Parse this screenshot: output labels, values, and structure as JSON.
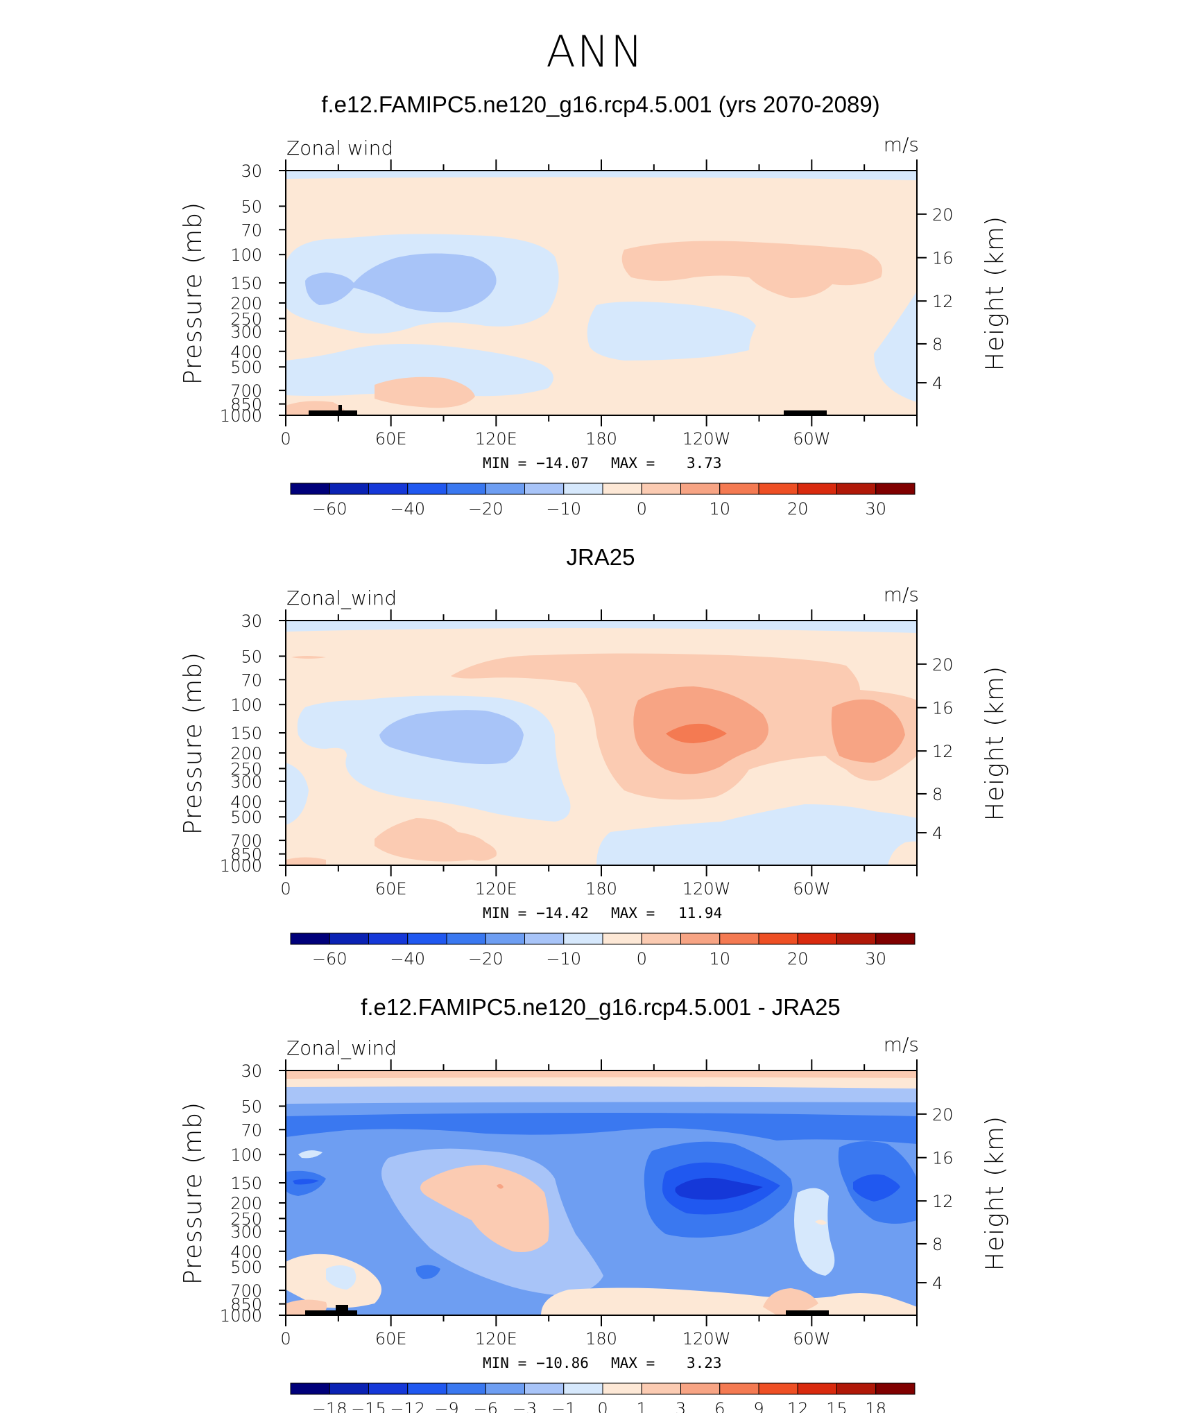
{
  "figure": {
    "title": "ANN",
    "colors": {
      "bg": "#ffffff",
      "axis": "#000000"
    }
  },
  "chart_data": [
    {
      "type": "heatmap",
      "title": "f.e12.FAMIPC5.ne120_g16.rcp4.5.001 (yrs 2070-2089)",
      "variable_label": "Zonal wind",
      "units": "m/s",
      "ylabel": "Pressure (mb)",
      "ylabel_right": "Height (km)",
      "x_ticks": [
        "0",
        "60E",
        "120E",
        "180",
        "120W",
        "60W"
      ],
      "y_ticks": [
        "30",
        "50",
        "70",
        "100",
        "150",
        "200",
        "250",
        "300",
        "400",
        "500",
        "700",
        "850",
        "1000"
      ],
      "y2_ticks": [
        "20",
        "16",
        "12",
        "8",
        "4"
      ],
      "min_label": "MIN =",
      "min": "−14.07",
      "max_label": "MAX =",
      "max": "3.73",
      "colorbar_labels": [
        "−60",
        "−40",
        "−20",
        "−10",
        "0",
        "10",
        "20",
        "30"
      ],
      "colorbar_colors": [
        "#00007a",
        "#0a22b4",
        "#1538d8",
        "#2058f0",
        "#3a78f0",
        "#6e9ef2",
        "#a8c4f8",
        "#d6e8fc",
        "#fde8d6",
        "#fbcbb2",
        "#f7a484",
        "#f47a52",
        "#ee4f24",
        "#d92a0e",
        "#b01808",
        "#800000"
      ]
    },
    {
      "type": "heatmap",
      "title": "JRA25",
      "variable_label": "Zonal_wind",
      "units": "m/s",
      "ylabel": "Pressure (mb)",
      "ylabel_right": "Height (km)",
      "x_ticks": [
        "0",
        "60E",
        "120E",
        "180",
        "120W",
        "60W"
      ],
      "y_ticks": [
        "30",
        "50",
        "70",
        "100",
        "150",
        "200",
        "250",
        "300",
        "400",
        "500",
        "700",
        "850",
        "1000"
      ],
      "y2_ticks": [
        "20",
        "16",
        "12",
        "8",
        "4"
      ],
      "min_label": "MIN =",
      "min": "−14.42",
      "max_label": "MAX =",
      "max": "11.94",
      "colorbar_labels": [
        "−60",
        "−40",
        "−20",
        "−10",
        "0",
        "10",
        "20",
        "30"
      ],
      "colorbar_colors": [
        "#00007a",
        "#0a22b4",
        "#1538d8",
        "#2058f0",
        "#3a78f0",
        "#6e9ef2",
        "#a8c4f8",
        "#d6e8fc",
        "#fde8d6",
        "#fbcbb2",
        "#f7a484",
        "#f47a52",
        "#ee4f24",
        "#d92a0e",
        "#b01808",
        "#800000"
      ]
    },
    {
      "type": "heatmap",
      "title": "f.e12.FAMIPC5.ne120_g16.rcp4.5.001 - JRA25",
      "variable_label": "Zonal_wind",
      "units": "m/s",
      "ylabel": "Pressure (mb)",
      "ylabel_right": "Height (km)",
      "x_ticks": [
        "0",
        "60E",
        "120E",
        "180",
        "120W",
        "60W"
      ],
      "y_ticks": [
        "30",
        "50",
        "70",
        "100",
        "150",
        "200",
        "250",
        "300",
        "400",
        "500",
        "700",
        "850",
        "1000"
      ],
      "y2_ticks": [
        "20",
        "16",
        "12",
        "8",
        "4"
      ],
      "min_label": "MIN =",
      "min": "−10.86",
      "max_label": "MAX =",
      "max": "3.23",
      "colorbar_labels": [
        "−18",
        "−15",
        "−12",
        "−9",
        "−6",
        "−3",
        "−1",
        "0",
        "1",
        "3",
        "6",
        "9",
        "12",
        "15",
        "18"
      ],
      "colorbar_colors": [
        "#00007a",
        "#0a22b4",
        "#1538d8",
        "#2058f0",
        "#3a78f0",
        "#6e9ef2",
        "#a8c4f8",
        "#d6e8fc",
        "#fde8d6",
        "#fbcbb2",
        "#f7a484",
        "#f47a52",
        "#ee4f24",
        "#d92a0e",
        "#b01808",
        "#800000"
      ]
    }
  ]
}
